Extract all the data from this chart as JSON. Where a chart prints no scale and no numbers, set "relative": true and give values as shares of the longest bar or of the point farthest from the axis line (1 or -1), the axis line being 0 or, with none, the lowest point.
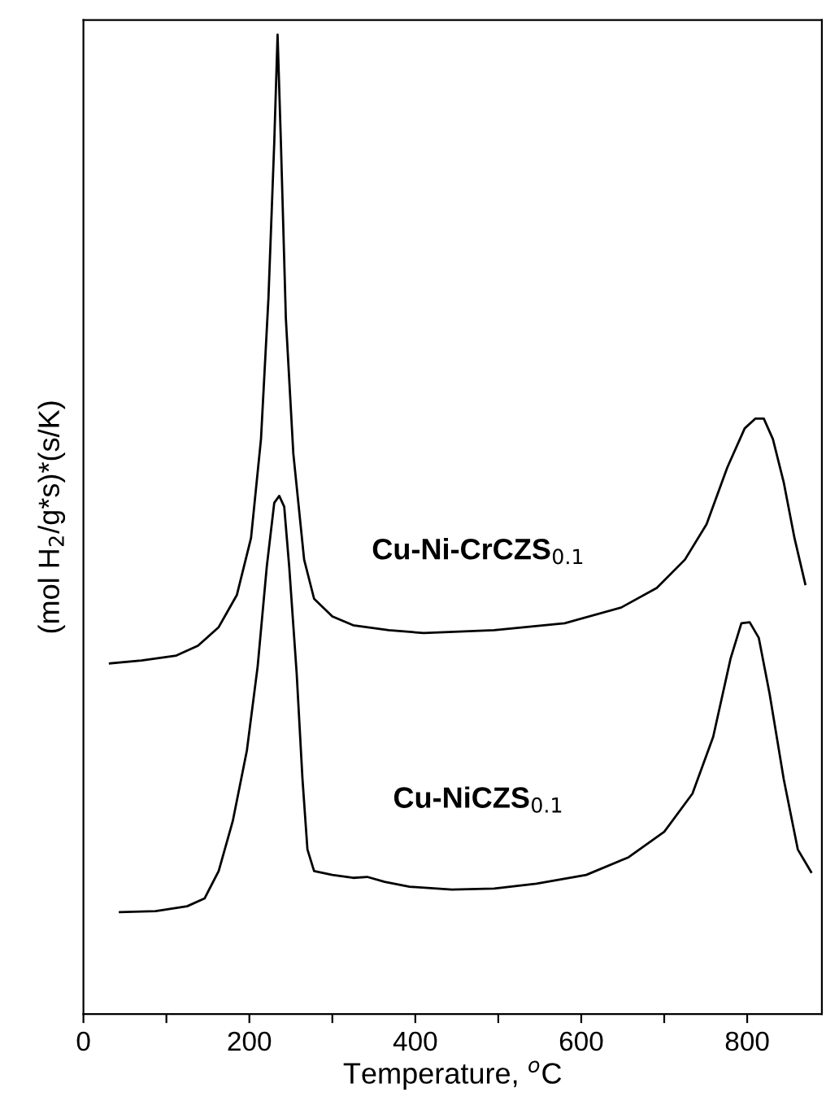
{
  "chart_data": {
    "type": "line",
    "relative": true,
    "xlabel": "Temperature, $^{o}$C",
    "ylabel": "(mol H$_{2}$/g*s)*(s/K)",
    "xlim": [
      0,
      890
    ],
    "xticks": [
      0,
      {
        "value": 100,
        "label": null
      },
      200,
      {
        "value": 300,
        "label": null
      },
      400,
      {
        "value": 500,
        "label": null
      },
      600,
      {
        "value": 700,
        "label": null
      },
      800
    ],
    "tick_labels": "x",
    "grid": false,
    "legend": false,
    "marker": "none",
    "line_style": "solid",
    "series": [
      {
        "name": "Cu-Ni-CrCZS$_{0.1}$",
        "color": "#000000",
        "x": [
          32,
          70,
          112,
          138,
          163,
          185,
          202,
          214,
          223,
          230,
          234,
          238,
          244,
          253,
          266,
          278,
          300,
          325,
          368,
          410,
          495,
          580,
          648,
          691,
          725,
          751,
          776,
          797,
          810,
          820,
          831,
          844,
          857,
          870
        ],
        "values": [
          0.358,
          0.361,
          0.366,
          0.376,
          0.395,
          0.428,
          0.486,
          0.587,
          0.731,
          0.89,
          1.0,
          0.89,
          0.71,
          0.572,
          0.464,
          0.424,
          0.406,
          0.397,
          0.392,
          0.389,
          0.392,
          0.399,
          0.415,
          0.435,
          0.464,
          0.5,
          0.558,
          0.598,
          0.608,
          0.608,
          0.587,
          0.543,
          0.486,
          0.439
        ]
      },
      {
        "name": "Cu-NiCZS$_{0.1}$",
        "color": "#000000",
        "x": [
          44,
          87,
          125,
          146,
          163,
          180,
          197,
          210,
          221,
          230,
          236,
          242,
          248,
          257,
          264,
          270,
          278,
          300,
          325,
          342,
          363,
          393,
          444,
          495,
          546,
          606,
          657,
          700,
          734,
          759,
          780,
          793,
          803,
          814,
          827,
          844,
          861,
          877
        ],
        "values": [
          0.104,
          0.105,
          0.11,
          0.118,
          0.146,
          0.197,
          0.269,
          0.355,
          0.457,
          0.522,
          0.529,
          0.518,
          0.457,
          0.348,
          0.24,
          0.168,
          0.146,
          0.142,
          0.139,
          0.14,
          0.135,
          0.13,
          0.127,
          0.128,
          0.133,
          0.142,
          0.16,
          0.186,
          0.225,
          0.283,
          0.363,
          0.399,
          0.4,
          0.384,
          0.327,
          0.24,
          0.168,
          0.145
        ]
      }
    ]
  }
}
